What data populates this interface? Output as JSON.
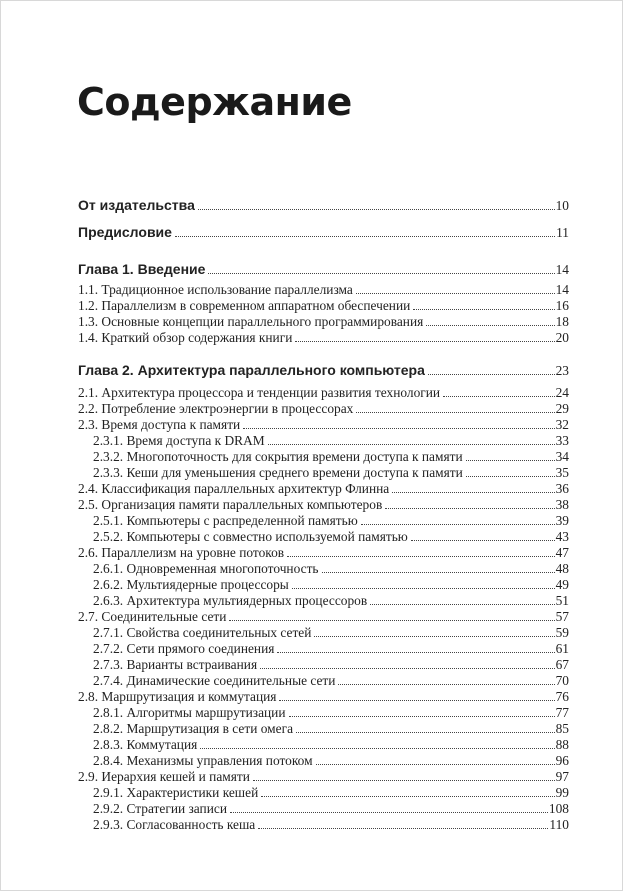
{
  "page_title": "Содержание",
  "entries": [
    {
      "level": "front",
      "label": "От издательства",
      "page": "10"
    },
    {
      "level": "front",
      "label": "Предисловие",
      "page": "11"
    },
    {
      "level": "chapter",
      "label": "Глава 1. Введение",
      "page": "14"
    },
    {
      "level": "section",
      "label": "1.1. Традиционное использование параллелизма",
      "page": "14"
    },
    {
      "level": "section",
      "label": "1.2. Параллелизм в современном аппаратном обеспечении",
      "page": "16"
    },
    {
      "level": "section",
      "label": "1.3. Основные концепции параллельного программирования",
      "page": "18"
    },
    {
      "level": "section",
      "label": "1.4. Краткий обзор содержания книги",
      "page": "20"
    },
    {
      "level": "chapter",
      "label": "Глава 2. Архитектура параллельного компьютера",
      "page": "23"
    },
    {
      "level": "section",
      "label": "2.1. Архитектура процессора и тенденции развития технологии",
      "page": "24"
    },
    {
      "level": "section",
      "label": "2.2. Потребление электроэнергии в процессорах",
      "page": "29"
    },
    {
      "level": "section",
      "label": "2.3. Время доступа к памяти",
      "page": "32"
    },
    {
      "level": "subsection",
      "label": "2.3.1. Время доступа к DRAM",
      "page": "33"
    },
    {
      "level": "subsection",
      "label": "2.3.2. Многопоточность для сокрытия времени доступа к памяти",
      "page": "34"
    },
    {
      "level": "subsection",
      "label": "2.3.3. Кеши для уменьшения среднего времени доступа к памяти",
      "page": "35"
    },
    {
      "level": "section",
      "label": "2.4. Классификация параллельных архитектур Флинна",
      "page": "36"
    },
    {
      "level": "section",
      "label": "2.5. Организация памяти параллельных компьютеров",
      "page": "38"
    },
    {
      "level": "subsection",
      "label": "2.5.1. Компьютеры с распределенной памятью",
      "page": "39"
    },
    {
      "level": "subsection",
      "label": "2.5.2. Компьютеры с совместно используемой памятью",
      "page": "43"
    },
    {
      "level": "section",
      "label": "2.6. Параллелизм на уровне потоков",
      "page": "47"
    },
    {
      "level": "subsection",
      "label": "2.6.1. Одновременная многопоточность",
      "page": "48"
    },
    {
      "level": "subsection",
      "label": "2.6.2. Мультиядерные процессоры",
      "page": "49"
    },
    {
      "level": "subsection",
      "label": "2.6.3. Архитектура мультиядерных процессоров",
      "page": "51"
    },
    {
      "level": "section",
      "label": "2.7. Соединительные сети",
      "page": "57"
    },
    {
      "level": "subsection",
      "label": "2.7.1. Свойства соединительных сетей",
      "page": "59"
    },
    {
      "level": "subsection",
      "label": "2.7.2. Сети прямого соединения",
      "page": "61"
    },
    {
      "level": "subsection",
      "label": "2.7.3. Варианты встраивания",
      "page": "67"
    },
    {
      "level": "subsection",
      "label": "2.7.4. Динамические соединительные сети",
      "page": "70"
    },
    {
      "level": "section",
      "label": "2.8. Маршрутизация и коммутация",
      "page": "76"
    },
    {
      "level": "subsection",
      "label": "2.8.1. Алгоритмы маршрутизации",
      "page": "77"
    },
    {
      "level": "subsection",
      "label": "2.8.2. Маршрутизация в сети омега",
      "page": "85"
    },
    {
      "level": "subsection",
      "label": "2.8.3. Коммутация",
      "page": "88"
    },
    {
      "level": "subsection",
      "label": "2.8.4. Механизмы управления потоком",
      "page": "96"
    },
    {
      "level": "section",
      "label": "2.9. Иерархия кешей и памяти",
      "page": "97"
    },
    {
      "level": "subsection",
      "label": "2.9.1. Характеристики кешей",
      "page": "99"
    },
    {
      "level": "subsection",
      "label": "2.9.2. Стратегии записи",
      "page": "108"
    },
    {
      "level": "subsection",
      "label": "2.9.3. Согласованность кеша",
      "page": "110"
    }
  ]
}
